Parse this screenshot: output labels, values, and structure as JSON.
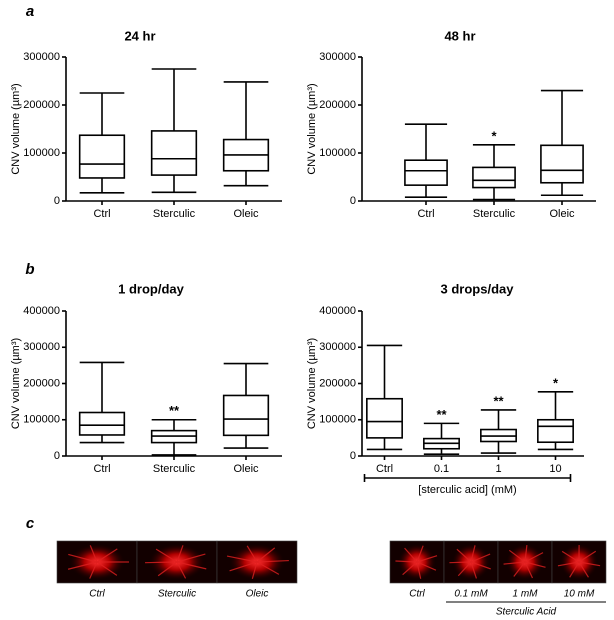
{
  "panel_labels": [
    "a",
    "b",
    "c"
  ],
  "chart_data": [
    {
      "type": "box",
      "title": "24 hr",
      "ylabel": "CNV volume (µm³)",
      "categories": [
        "Ctrl",
        "Sterculic",
        "Oleic"
      ],
      "boxes": [
        {
          "min": 17000,
          "q1": 48000,
          "median": 77000,
          "q3": 137000,
          "max": 225000
        },
        {
          "min": 18000,
          "q1": 54000,
          "median": 88000,
          "q3": 146000,
          "max": 275000
        },
        {
          "min": 32000,
          "q1": 63000,
          "median": 96000,
          "q3": 128000,
          "max": 248000
        }
      ],
      "significance": [
        null,
        null,
        null
      ],
      "ylim": [
        0,
        300000
      ],
      "yticks": [
        0,
        100000,
        200000,
        300000
      ]
    },
    {
      "type": "box",
      "title": "48 hr",
      "ylabel": "CNV volume (µm³)",
      "categories": [
        "Ctrl",
        "Sterculic",
        "Oleic"
      ],
      "boxes": [
        {
          "min": 8000,
          "q1": 33000,
          "median": 63000,
          "q3": 85000,
          "max": 160000
        },
        {
          "min": 3000,
          "q1": 28000,
          "median": 43000,
          "q3": 70000,
          "max": 117000
        },
        {
          "min": 12000,
          "q1": 38000,
          "median": 64000,
          "q3": 116000,
          "max": 230000
        }
      ],
      "significance": [
        null,
        "*",
        null
      ],
      "ylim": [
        0,
        300000
      ],
      "yticks": [
        0,
        100000,
        200000,
        300000
      ]
    },
    {
      "type": "box",
      "title": "1 drop/day",
      "ylabel": "CNV volume (µm³)",
      "categories": [
        "Ctrl",
        "Sterculic",
        "Oleic"
      ],
      "boxes": [
        {
          "min": 37000,
          "q1": 58000,
          "median": 85000,
          "q3": 120000,
          "max": 258000
        },
        {
          "min": 3000,
          "q1": 37000,
          "median": 55000,
          "q3": 70000,
          "max": 100000
        },
        {
          "min": 22000,
          "q1": 57000,
          "median": 102000,
          "q3": 167000,
          "max": 255000
        }
      ],
      "significance": [
        null,
        "**",
        null
      ],
      "ylim": [
        0,
        400000
      ],
      "yticks": [
        0,
        100000,
        200000,
        300000,
        400000
      ]
    },
    {
      "type": "box",
      "title": "3 drops/day",
      "ylabel": "CNV volume (µm³)",
      "categories": [
        "Ctrl",
        "0.1",
        "1",
        "10"
      ],
      "bracket_label": "[sterculic acid] (mM)",
      "boxes": [
        {
          "min": 18000,
          "q1": 50000,
          "median": 95000,
          "q3": 158000,
          "max": 305000
        },
        {
          "min": 5000,
          "q1": 20000,
          "median": 35000,
          "q3": 48000,
          "max": 90000
        },
        {
          "min": 8000,
          "q1": 40000,
          "median": 55000,
          "q3": 73000,
          "max": 127000
        },
        {
          "min": 18000,
          "q1": 38000,
          "median": 82000,
          "q3": 100000,
          "max": 177000
        }
      ],
      "significance": [
        null,
        "**",
        "**",
        "*"
      ],
      "ylim": [
        0,
        400000
      ],
      "yticks": [
        0,
        100000,
        200000,
        300000,
        400000
      ]
    }
  ],
  "micrographs": {
    "left": [
      "Ctrl",
      "Sterculic",
      "Oleic"
    ],
    "right": [
      "Ctrl",
      "0.1 mM",
      "1 mM",
      "10 mM"
    ],
    "right_group": "Sterculic Acid"
  }
}
